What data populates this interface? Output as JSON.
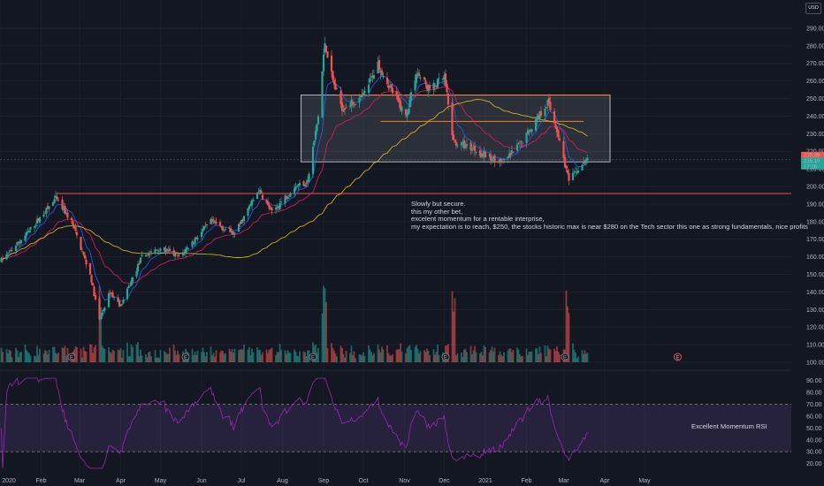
{
  "chart_data": [
    {
      "type": "candlestick",
      "title": "",
      "currency": "USD",
      "x_labels": [
        "2020",
        "Feb",
        "Mar",
        "Apr",
        "May",
        "Jun",
        "Jul",
        "Aug",
        "Sep",
        "Oct",
        "Nov",
        "Dec",
        "2021",
        "Feb",
        "Mar",
        "Apr",
        "May"
      ],
      "y_ticks": [
        100,
        110,
        120,
        130,
        140,
        150,
        160,
        170,
        180,
        190,
        200,
        210,
        220,
        230,
        240,
        250,
        260,
        270,
        280,
        290
      ],
      "ylim": [
        96,
        295
      ],
      "price_badges": [
        "215.39",
        "215.10",
        "17:16"
      ],
      "anchors": [
        {
          "date": "2020-01-02",
          "price": 158
        },
        {
          "date": "2020-01-20",
          "price": 172
        },
        {
          "date": "2020-02-12",
          "price": 193
        },
        {
          "date": "2020-02-24",
          "price": 180
        },
        {
          "date": "2020-03-09",
          "price": 150
        },
        {
          "date": "2020-03-16",
          "price": 124
        },
        {
          "date": "2020-03-24",
          "price": 140
        },
        {
          "date": "2020-04-01",
          "price": 132
        },
        {
          "date": "2020-04-17",
          "price": 160
        },
        {
          "date": "2020-05-01",
          "price": 165
        },
        {
          "date": "2020-05-15",
          "price": 160
        },
        {
          "date": "2020-06-08",
          "price": 180
        },
        {
          "date": "2020-06-26",
          "price": 173
        },
        {
          "date": "2020-07-14",
          "price": 198
        },
        {
          "date": "2020-07-24",
          "price": 185
        },
        {
          "date": "2020-08-10",
          "price": 200
        },
        {
          "date": "2020-08-20",
          "price": 203
        },
        {
          "date": "2020-08-28",
          "price": 240
        },
        {
          "date": "2020-09-02",
          "price": 282
        },
        {
          "date": "2020-09-08",
          "price": 260
        },
        {
          "date": "2020-09-15",
          "price": 245
        },
        {
          "date": "2020-09-30",
          "price": 250
        },
        {
          "date": "2020-10-12",
          "price": 270
        },
        {
          "date": "2020-10-22",
          "price": 255
        },
        {
          "date": "2020-11-02",
          "price": 240
        },
        {
          "date": "2020-11-10",
          "price": 265
        },
        {
          "date": "2020-11-20",
          "price": 255
        },
        {
          "date": "2020-12-01",
          "price": 262
        },
        {
          "date": "2020-12-08",
          "price": 225
        },
        {
          "date": "2020-12-22",
          "price": 222
        },
        {
          "date": "2021-01-05",
          "price": 216
        },
        {
          "date": "2021-01-15",
          "price": 214
        },
        {
          "date": "2021-01-28",
          "price": 225
        },
        {
          "date": "2021-02-10",
          "price": 240
        },
        {
          "date": "2021-02-17",
          "price": 248
        },
        {
          "date": "2021-02-24",
          "price": 232
        },
        {
          "date": "2021-03-05",
          "price": 203
        },
        {
          "date": "2021-03-12",
          "price": 210
        },
        {
          "date": "2021-03-19",
          "price": 215
        }
      ],
      "overlays": {
        "rectangle": {
          "from": "2020-08-15",
          "to": "2021-04-05",
          "top": 252,
          "bottom": 214
        },
        "resistance_line": 252,
        "support_line": 196,
        "mid_line": 237
      },
      "volume_markers": [
        "E",
        "E",
        "E",
        "E",
        "E",
        "E"
      ]
    },
    {
      "type": "line",
      "title": "",
      "y_ticks": [
        20,
        30,
        40,
        50,
        60,
        70,
        80,
        90
      ],
      "ylim": [
        10,
        98
      ],
      "upper_band": 70,
      "lower_band": 30
    }
  ],
  "annotations": {
    "main_note": [
      "Slowly but secure.",
      "this my other bet,",
      "excelent momentum for a rentable interprise,",
      "my expectation is to reach, $250, the stocks historic max is near $280 on the Tech sector this one as strong fundamentals, nice profits"
    ],
    "rsi_note": "Excellent Momentum RSI"
  },
  "colors": {
    "up": "#26a69a",
    "down": "#ef5350",
    "ema_fast": "#2962ff",
    "ema_mid": "#e91e63",
    "sma_slow": "#f0c419",
    "rsi": "#9c27b0"
  }
}
